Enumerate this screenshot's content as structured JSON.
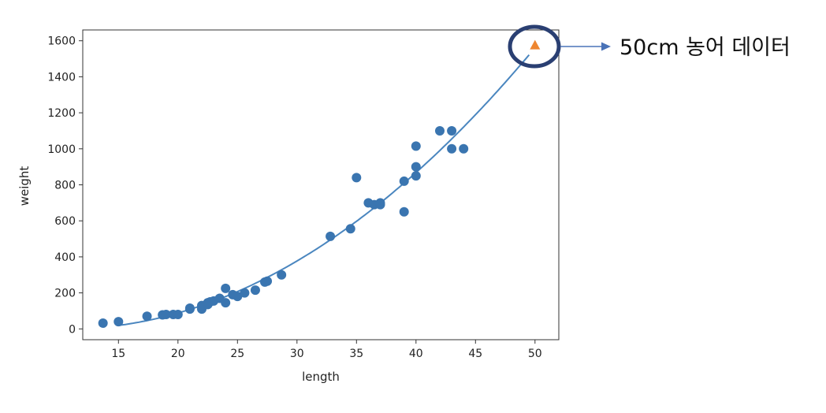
{
  "chart_data": {
    "type": "scatter",
    "xlabel": "length",
    "ylabel": "weight",
    "xlim": [
      12,
      52
    ],
    "ylim": [
      -60,
      1660
    ],
    "x_ticks": [
      15,
      20,
      25,
      30,
      35,
      40,
      45,
      50
    ],
    "y_ticks": [
      0,
      200,
      400,
      600,
      800,
      1000,
      1200,
      1400,
      1600
    ],
    "grid": false,
    "legend": "none",
    "series": [
      {
        "kind": "scatter",
        "marker": "circle",
        "color": "#3a75b0",
        "x": [
          13.7,
          15.0,
          17.4,
          18.7,
          19.0,
          19.6,
          20.0,
          21.0,
          21.0,
          22.0,
          22.0,
          22.0,
          22.5,
          22.5,
          22.7,
          23.0,
          23.5,
          24.0,
          24.0,
          24.6,
          25.0,
          25.6,
          26.5,
          27.3,
          27.5,
          28.7,
          32.8,
          34.5,
          35.0,
          36.0,
          36.5,
          37.0,
          37.0,
          39.0,
          39.0,
          40.0,
          40.0,
          40.0,
          42.0,
          43.0,
          43.0,
          44.0
        ],
        "y": [
          32,
          40,
          70,
          78,
          80,
          80,
          80,
          110,
          115,
          110,
          120,
          130,
          135,
          145,
          150,
          155,
          170,
          225,
          145,
          190,
          180,
          200,
          215,
          260,
          265,
          300,
          514,
          556,
          840,
          700,
          690,
          690,
          700,
          650,
          820,
          850,
          900,
          1015,
          1100,
          1000,
          1100,
          1000
        ]
      },
      {
        "kind": "curve",
        "color": "#4a86bf",
        "x_range": [
          15,
          49.5
        ],
        "coefficients": [
          116.05,
          -21.6,
          1.01
        ]
      },
      {
        "kind": "scatter",
        "marker": "triangle",
        "color": "#ee8630",
        "x": [
          50
        ],
        "y": [
          1574
        ]
      }
    ],
    "annotation": {
      "text": "50cm 농어 데이터",
      "highlight_color": "#2a3f72",
      "arrow_color": "#4a73b8"
    }
  }
}
